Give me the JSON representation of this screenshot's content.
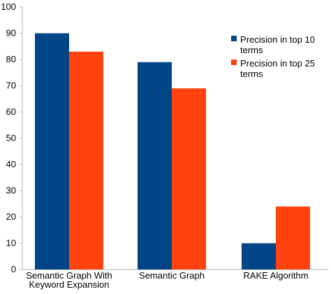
{
  "chart_data": {
    "type": "bar",
    "categories": [
      [
        "Semantic Graph  With",
        "Keyword Expansion"
      ],
      [
        "Semantic Graph"
      ],
      [
        "RAKE Algorithm"
      ]
    ],
    "series": [
      {
        "name_lines": [
          "Precision in top 10",
          "terms"
        ],
        "color": "#004586",
        "values": [
          90,
          79,
          10
        ]
      },
      {
        "name_lines": [
          "Precision in top 25",
          "terms"
        ],
        "color": "#ff420e",
        "values": [
          83,
          69,
          24
        ]
      }
    ],
    "ylim": [
      0,
      100
    ],
    "yticks": [
      0,
      10,
      20,
      30,
      40,
      50,
      60,
      70,
      80,
      90,
      100
    ],
    "grid": false,
    "legend": "right",
    "axis_color": "#b3b3b3"
  }
}
